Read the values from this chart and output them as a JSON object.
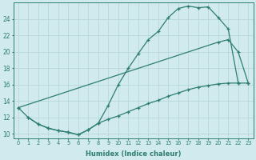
{
  "background_color": "#d0eaed",
  "grid_color": "#b8d8db",
  "line_color": "#2e7d72",
  "xlabel": "Humidex (Indice chaleur)",
  "xlim": [
    -0.5,
    23.5
  ],
  "ylim": [
    9.5,
    26.0
  ],
  "yticks": [
    10,
    12,
    14,
    16,
    18,
    20,
    22,
    24
  ],
  "xticks": [
    0,
    1,
    2,
    3,
    4,
    5,
    6,
    7,
    8,
    9,
    10,
    11,
    12,
    13,
    14,
    15,
    16,
    17,
    18,
    19,
    20,
    21,
    22,
    23
  ],
  "line1_x": [
    0,
    1,
    2,
    3,
    4,
    5,
    6,
    7,
    8,
    9,
    10,
    11,
    12,
    13,
    14,
    15,
    16,
    17,
    18,
    19,
    20,
    21,
    22
  ],
  "line1_y": [
    13.2,
    12.0,
    11.2,
    10.7,
    10.4,
    10.2,
    9.9,
    10.5,
    11.3,
    13.5,
    16.0,
    18.0,
    19.8,
    21.5,
    22.5,
    24.2,
    25.3,
    25.6,
    25.4,
    25.5,
    24.2,
    22.8,
    16.2
  ],
  "line2_x": [
    0,
    20,
    21,
    22,
    23
  ],
  "line2_y": [
    13.2,
    21.2,
    21.5,
    20.0,
    16.2
  ],
  "line3_x": [
    1,
    2,
    3,
    4,
    5,
    6,
    7,
    8,
    9,
    10,
    11,
    12,
    13,
    14,
    15,
    16,
    17,
    18,
    19,
    20,
    21,
    22,
    23
  ],
  "line3_y": [
    12.0,
    11.2,
    10.7,
    10.4,
    10.2,
    9.9,
    10.5,
    11.3,
    11.8,
    12.2,
    12.7,
    13.2,
    13.7,
    14.1,
    14.6,
    15.0,
    15.4,
    15.7,
    15.9,
    16.1,
    16.2,
    16.2,
    16.2
  ]
}
